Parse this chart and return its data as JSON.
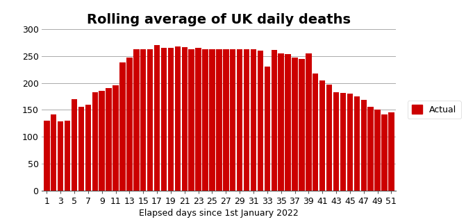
{
  "title": "Rolling average of UK daily deaths",
  "xlabel": "Elapsed days since 1st January 2022",
  "ylabel": "",
  "bar_color": "#cc0000",
  "legend_label": "Actual",
  "ylim": [
    0,
    300
  ],
  "yticks": [
    0,
    50,
    100,
    150,
    200,
    250,
    300
  ],
  "xtick_step": 2,
  "values": [
    130,
    141,
    128,
    130,
    170,
    156,
    160,
    183,
    185,
    190,
    195,
    238,
    247,
    262,
    263,
    263,
    270,
    265,
    265,
    268,
    267,
    263,
    265,
    263,
    263,
    262,
    262,
    263,
    263,
    263,
    263,
    260,
    230,
    261,
    255,
    253,
    247,
    244,
    255,
    218,
    205,
    197,
    183,
    181,
    180,
    175,
    168,
    155,
    150,
    141,
    145
  ],
  "title_fontsize": 14,
  "xlabel_fontsize": 9,
  "tick_fontsize": 9,
  "legend_fontsize": 9,
  "background_color": "#ffffff",
  "grid_color": "#aaaaaa",
  "grid_linewidth": 0.7
}
